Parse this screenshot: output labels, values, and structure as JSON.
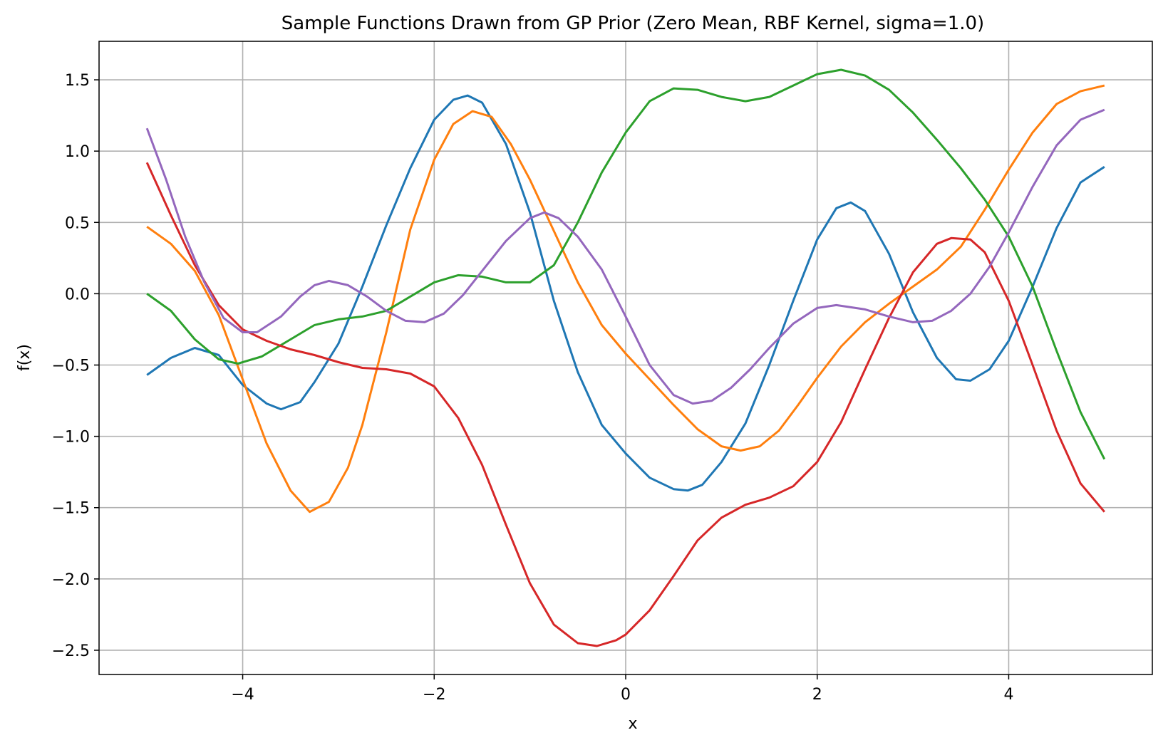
{
  "chart_data": {
    "type": "line",
    "title": "Sample Functions Drawn from GP Prior (Zero Mean, RBF Kernel, sigma=1.0)",
    "xlabel": "x",
    "ylabel": "f(x)",
    "xlim": [
      -5.5,
      5.5
    ],
    "ylim": [
      -2.67,
      1.77
    ],
    "xticks": [
      -4,
      -2,
      0,
      2,
      4
    ],
    "yticks": [
      1.5,
      1.0,
      0.5,
      0.0,
      -0.5,
      -1.0,
      -1.5,
      -2.0,
      -2.5
    ],
    "xtick_labels": [
      "−4",
      "−2",
      "0",
      "2",
      "4"
    ],
    "ytick_labels": [
      "1.5",
      "1.0",
      "0.5",
      "0.0",
      "−0.5",
      "−1.0",
      "−1.5",
      "−2.0",
      "−2.5"
    ],
    "grid": true,
    "series": [
      {
        "color": "#1f77b4",
        "points": [
          [
            -5.0,
            -0.57
          ],
          [
            -4.75,
            -0.45
          ],
          [
            -4.5,
            -0.38
          ],
          [
            -4.25,
            -0.43
          ],
          [
            -4.0,
            -0.64
          ],
          [
            -3.75,
            -0.77
          ],
          [
            -3.6,
            -0.81
          ],
          [
            -3.4,
            -0.76
          ],
          [
            -3.25,
            -0.62
          ],
          [
            -3.0,
            -0.35
          ],
          [
            -2.75,
            0.05
          ],
          [
            -2.5,
            0.48
          ],
          [
            -2.25,
            0.88
          ],
          [
            -2.0,
            1.22
          ],
          [
            -1.8,
            1.36
          ],
          [
            -1.65,
            1.39
          ],
          [
            -1.5,
            1.34
          ],
          [
            -1.25,
            1.05
          ],
          [
            -1.0,
            0.57
          ],
          [
            -0.75,
            -0.05
          ],
          [
            -0.5,
            -0.55
          ],
          [
            -0.25,
            -0.92
          ],
          [
            0.0,
            -1.12
          ],
          [
            0.25,
            -1.29
          ],
          [
            0.5,
            -1.37
          ],
          [
            0.65,
            -1.38
          ],
          [
            0.8,
            -1.34
          ],
          [
            1.0,
            -1.18
          ],
          [
            1.25,
            -0.91
          ],
          [
            1.5,
            -0.5
          ],
          [
            1.75,
            -0.05
          ],
          [
            2.0,
            0.38
          ],
          [
            2.2,
            0.6
          ],
          [
            2.35,
            0.64
          ],
          [
            2.5,
            0.58
          ],
          [
            2.75,
            0.28
          ],
          [
            3.0,
            -0.13
          ],
          [
            3.25,
            -0.45
          ],
          [
            3.45,
            -0.6
          ],
          [
            3.6,
            -0.61
          ],
          [
            3.8,
            -0.53
          ],
          [
            4.0,
            -0.33
          ],
          [
            4.25,
            0.05
          ],
          [
            4.5,
            0.46
          ],
          [
            4.75,
            0.78
          ],
          [
            5.0,
            0.89
          ]
        ]
      },
      {
        "color": "#ff7f0e",
        "points": [
          [
            -5.0,
            0.47
          ],
          [
            -4.75,
            0.35
          ],
          [
            -4.5,
            0.16
          ],
          [
            -4.25,
            -0.15
          ],
          [
            -4.0,
            -0.6
          ],
          [
            -3.75,
            -1.05
          ],
          [
            -3.5,
            -1.38
          ],
          [
            -3.3,
            -1.53
          ],
          [
            -3.1,
            -1.46
          ],
          [
            -2.9,
            -1.22
          ],
          [
            -2.75,
            -0.92
          ],
          [
            -2.5,
            -0.27
          ],
          [
            -2.25,
            0.45
          ],
          [
            -2.0,
            0.94
          ],
          [
            -1.8,
            1.19
          ],
          [
            -1.6,
            1.28
          ],
          [
            -1.4,
            1.24
          ],
          [
            -1.2,
            1.05
          ],
          [
            -1.0,
            0.8
          ],
          [
            -0.75,
            0.44
          ],
          [
            -0.5,
            0.08
          ],
          [
            -0.25,
            -0.22
          ],
          [
            0.0,
            -0.42
          ],
          [
            0.25,
            -0.6
          ],
          [
            0.5,
            -0.78
          ],
          [
            0.75,
            -0.95
          ],
          [
            1.0,
            -1.07
          ],
          [
            1.2,
            -1.1
          ],
          [
            1.4,
            -1.07
          ],
          [
            1.6,
            -0.96
          ],
          [
            1.8,
            -0.78
          ],
          [
            2.0,
            -0.59
          ],
          [
            2.25,
            -0.37
          ],
          [
            2.5,
            -0.2
          ],
          [
            2.75,
            -0.07
          ],
          [
            3.0,
            0.05
          ],
          [
            3.25,
            0.17
          ],
          [
            3.5,
            0.33
          ],
          [
            3.75,
            0.59
          ],
          [
            4.0,
            0.87
          ],
          [
            4.25,
            1.13
          ],
          [
            4.5,
            1.33
          ],
          [
            4.75,
            1.42
          ],
          [
            5.0,
            1.46
          ]
        ]
      },
      {
        "color": "#2ca02c",
        "points": [
          [
            -5.0,
            0.0
          ],
          [
            -4.75,
            -0.12
          ],
          [
            -4.5,
            -0.32
          ],
          [
            -4.25,
            -0.46
          ],
          [
            -4.05,
            -0.49
          ],
          [
            -3.8,
            -0.44
          ],
          [
            -3.5,
            -0.32
          ],
          [
            -3.25,
            -0.22
          ],
          [
            -3.0,
            -0.18
          ],
          [
            -2.75,
            -0.16
          ],
          [
            -2.5,
            -0.12
          ],
          [
            -2.25,
            -0.02
          ],
          [
            -2.0,
            0.08
          ],
          [
            -1.75,
            0.13
          ],
          [
            -1.5,
            0.12
          ],
          [
            -1.25,
            0.08
          ],
          [
            -1.0,
            0.08
          ],
          [
            -0.75,
            0.2
          ],
          [
            -0.5,
            0.5
          ],
          [
            -0.25,
            0.85
          ],
          [
            0.0,
            1.13
          ],
          [
            0.25,
            1.35
          ],
          [
            0.5,
            1.44
          ],
          [
            0.75,
            1.43
          ],
          [
            1.0,
            1.38
          ],
          [
            1.25,
            1.35
          ],
          [
            1.5,
            1.38
          ],
          [
            1.75,
            1.46
          ],
          [
            2.0,
            1.54
          ],
          [
            2.25,
            1.57
          ],
          [
            2.5,
            1.53
          ],
          [
            2.75,
            1.43
          ],
          [
            3.0,
            1.27
          ],
          [
            3.25,
            1.08
          ],
          [
            3.5,
            0.88
          ],
          [
            3.75,
            0.66
          ],
          [
            4.0,
            0.4
          ],
          [
            4.25,
            0.05
          ],
          [
            4.5,
            -0.4
          ],
          [
            4.75,
            -0.83
          ],
          [
            5.0,
            -1.16
          ]
        ]
      },
      {
        "color": "#d62728",
        "points": [
          [
            -5.0,
            0.92
          ],
          [
            -4.75,
            0.55
          ],
          [
            -4.5,
            0.2
          ],
          [
            -4.25,
            -0.08
          ],
          [
            -4.0,
            -0.25
          ],
          [
            -3.75,
            -0.33
          ],
          [
            -3.5,
            -0.39
          ],
          [
            -3.25,
            -0.43
          ],
          [
            -3.0,
            -0.48
          ],
          [
            -2.75,
            -0.52
          ],
          [
            -2.5,
            -0.53
          ],
          [
            -2.25,
            -0.56
          ],
          [
            -2.0,
            -0.65
          ],
          [
            -1.75,
            -0.87
          ],
          [
            -1.5,
            -1.2
          ],
          [
            -1.25,
            -1.62
          ],
          [
            -1.0,
            -2.03
          ],
          [
            -0.75,
            -2.32
          ],
          [
            -0.5,
            -2.45
          ],
          [
            -0.3,
            -2.47
          ],
          [
            -0.1,
            -2.43
          ],
          [
            0.0,
            -2.39
          ],
          [
            0.25,
            -2.22
          ],
          [
            0.5,
            -1.98
          ],
          [
            0.75,
            -1.73
          ],
          [
            1.0,
            -1.57
          ],
          [
            1.25,
            -1.48
          ],
          [
            1.5,
            -1.43
          ],
          [
            1.75,
            -1.35
          ],
          [
            2.0,
            -1.18
          ],
          [
            2.25,
            -0.9
          ],
          [
            2.5,
            -0.53
          ],
          [
            2.75,
            -0.17
          ],
          [
            3.0,
            0.15
          ],
          [
            3.25,
            0.35
          ],
          [
            3.4,
            0.39
          ],
          [
            3.6,
            0.38
          ],
          [
            3.75,
            0.29
          ],
          [
            4.0,
            -0.05
          ],
          [
            4.25,
            -0.5
          ],
          [
            4.5,
            -0.96
          ],
          [
            4.75,
            -1.33
          ],
          [
            5.0,
            -1.53
          ]
        ]
      },
      {
        "color": "#9467bd",
        "points": [
          [
            -5.0,
            1.16
          ],
          [
            -4.8,
            0.8
          ],
          [
            -4.6,
            0.4
          ],
          [
            -4.4,
            0.08
          ],
          [
            -4.2,
            -0.17
          ],
          [
            -4.0,
            -0.27
          ],
          [
            -3.85,
            -0.27
          ],
          [
            -3.6,
            -0.16
          ],
          [
            -3.4,
            -0.02
          ],
          [
            -3.25,
            0.06
          ],
          [
            -3.1,
            0.09
          ],
          [
            -2.9,
            0.06
          ],
          [
            -2.7,
            -0.02
          ],
          [
            -2.5,
            -0.12
          ],
          [
            -2.3,
            -0.19
          ],
          [
            -2.1,
            -0.2
          ],
          [
            -1.9,
            -0.14
          ],
          [
            -1.7,
            -0.01
          ],
          [
            -1.5,
            0.16
          ],
          [
            -1.25,
            0.37
          ],
          [
            -1.0,
            0.53
          ],
          [
            -0.85,
            0.57
          ],
          [
            -0.7,
            0.53
          ],
          [
            -0.5,
            0.4
          ],
          [
            -0.25,
            0.17
          ],
          [
            0.0,
            -0.16
          ],
          [
            0.25,
            -0.5
          ],
          [
            0.5,
            -0.71
          ],
          [
            0.7,
            -0.77
          ],
          [
            0.9,
            -0.75
          ],
          [
            1.1,
            -0.66
          ],
          [
            1.3,
            -0.53
          ],
          [
            1.5,
            -0.38
          ],
          [
            1.75,
            -0.21
          ],
          [
            2.0,
            -0.1
          ],
          [
            2.2,
            -0.08
          ],
          [
            2.5,
            -0.11
          ],
          [
            2.75,
            -0.16
          ],
          [
            3.0,
            -0.2
          ],
          [
            3.2,
            -0.19
          ],
          [
            3.4,
            -0.12
          ],
          [
            3.6,
            0.0
          ],
          [
            3.8,
            0.19
          ],
          [
            4.0,
            0.43
          ],
          [
            4.25,
            0.75
          ],
          [
            4.5,
            1.04
          ],
          [
            4.75,
            1.22
          ],
          [
            5.0,
            1.29
          ]
        ]
      }
    ]
  }
}
